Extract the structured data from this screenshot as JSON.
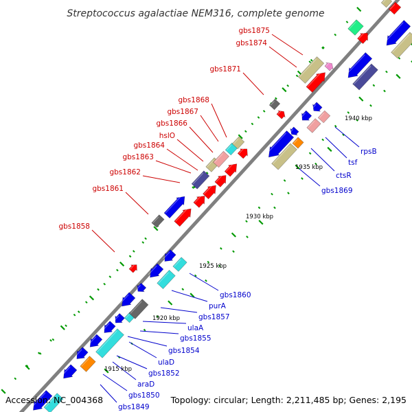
{
  "title": "Streptococcus agalactiae NEM316, complete genome",
  "footer": {
    "accession": "Accession: NC_004368",
    "summary": "Topology: circular; Length: 2,211,485 bp; Genes: 2,195"
  },
  "colors": {
    "background": "#ffffff",
    "backbone": "#808080",
    "forward_label": "#cc0000",
    "reverse_label": "#0000cc",
    "red_gene": "#ff0000",
    "blue_gene": "#0000ee",
    "cyan_gene": "#33dddd",
    "olive_gene": "#c8c088",
    "navy_gene": "#4a4a99",
    "pink_gene": "#f0a0a0",
    "gray_gene": "#666666",
    "orange_gene": "#ff8800",
    "green_gene": "#22ee88",
    "tick": "#009900"
  },
  "scale_labels": [
    "1915 kbp",
    "1920 kbp",
    "1925 kbp",
    "1930 kbp",
    "1935 kbp",
    "1940 kbp"
  ],
  "forward_labels": [
    "gbs1875",
    "gbs1874",
    "gbs1871",
    "gbs1868",
    "gbs1867",
    "gbs1866",
    "hslO",
    "gbs1864",
    "gbs1863",
    "gbs1862",
    "gbs1861",
    "gbs1858"
  ],
  "reverse_labels": [
    "rpsB",
    "tsf",
    "ctsR",
    "gbs1869",
    "gbs1860",
    "purA",
    "gbs1857",
    "ulaA",
    "gbs1855",
    "gbs1854",
    "ulaD",
    "gbs1852",
    "araD",
    "gbs1850",
    "gbs1849"
  ]
}
